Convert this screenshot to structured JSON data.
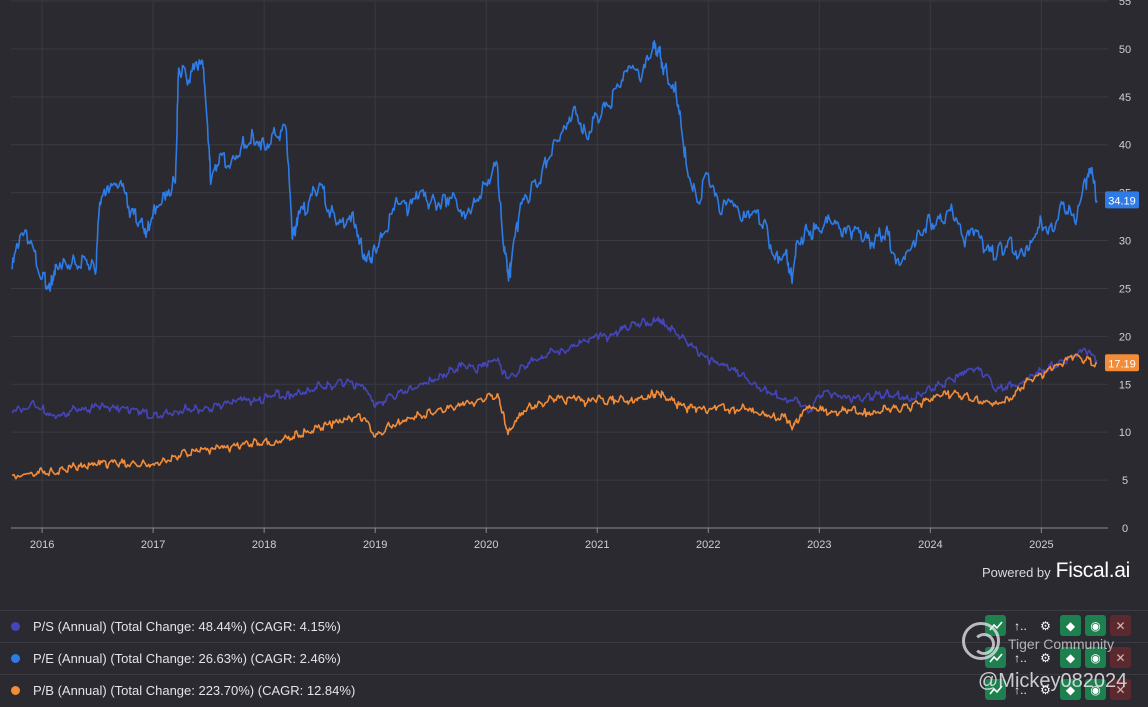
{
  "branding": {
    "powered_by": "Powered by",
    "brand": "Fiscal.ai"
  },
  "colors": {
    "background": "#2a2a30",
    "grid": "#3a3a42",
    "ps": "#4545b8",
    "pe": "#2f7be6",
    "pb": "#f28c38"
  },
  "legend": [
    {
      "label": "P/S (Annual) (Total Change: 48.44%) (CAGR: 4.15%)",
      "color": "#4545b8"
    },
    {
      "label": "P/E (Annual) (Total Change: 26.63%) (CAGR: 2.46%)",
      "color": "#2f7be6"
    },
    {
      "label": "P/B (Annual) (Total Change: 223.70%) (CAGR: 12.84%)",
      "color": "#f28c38"
    }
  ],
  "row_actions": {
    "icons": [
      "trend-icon",
      "sort-icon",
      "gear-icon",
      "tag-icon",
      "eye-icon",
      "close-icon"
    ],
    "sort_label": "↑.."
  },
  "watermark": {
    "title": "Tiger Community",
    "handle": "@Mickey082024"
  },
  "chart_data": {
    "type": "line",
    "ylim": [
      0,
      55
    ],
    "xlim": [
      2015.72,
      2025.6
    ],
    "yticks": [
      "0",
      "5",
      "10",
      "15",
      "20",
      "25",
      "30",
      "35",
      "40",
      "45",
      "50",
      "55"
    ],
    "xticks": [
      "2016",
      "2017",
      "2018",
      "2019",
      "2020",
      "2021",
      "2022",
      "2023",
      "2024",
      "2025"
    ],
    "grid": true,
    "end_labels": [
      {
        "series": "P/E",
        "text": "34.19",
        "value": 34.19
      },
      {
        "series": "P/B",
        "text": "17.19",
        "value": 17.19
      }
    ],
    "series": [
      {
        "name": "P/E (Annual) (Total Change: 26.63%) (CAGR: 2.46%)",
        "key": "pe",
        "x": [
          2015.73,
          2015.8,
          2015.9,
          2016.0,
          2016.08,
          2016.12,
          2016.2,
          2016.3,
          2016.4,
          2016.48,
          2016.52,
          2016.6,
          2016.7,
          2016.8,
          2016.88,
          2016.95,
          2017.0,
          2017.1,
          2017.2,
          2017.23,
          2017.3,
          2017.4,
          2017.45,
          2017.5,
          2017.52,
          2017.6,
          2017.7,
          2017.8,
          2017.9,
          2018.0,
          2018.1,
          2018.2,
          2018.25,
          2018.28,
          2018.3,
          2018.4,
          2018.5,
          2018.6,
          2018.7,
          2018.8,
          2018.88,
          2018.95,
          2019.0,
          2019.1,
          2019.2,
          2019.3,
          2019.4,
          2019.5,
          2019.6,
          2019.7,
          2019.8,
          2019.9,
          2020.0,
          2020.1,
          2020.15,
          2020.2,
          2020.22,
          2020.3,
          2020.4,
          2020.5,
          2020.6,
          2020.7,
          2020.8,
          2020.9,
          2021.0,
          2021.1,
          2021.2,
          2021.3,
          2021.4,
          2021.5,
          2021.55,
          2021.6,
          2021.7,
          2021.75,
          2021.8,
          2021.9,
          2022.0,
          2022.1,
          2022.2,
          2022.3,
          2022.4,
          2022.5,
          2022.6,
          2022.7,
          2022.75,
          2022.8,
          2022.9,
          2023.0,
          2023.1,
          2023.2,
          2023.3,
          2023.4,
          2023.5,
          2023.6,
          2023.7,
          2023.8,
          2023.9,
          2024.0,
          2024.1,
          2024.2,
          2024.3,
          2024.4,
          2024.5,
          2024.6,
          2024.7,
          2024.8,
          2024.9,
          2025.0,
          2025.1,
          2025.2,
          2025.3,
          2025.4,
          2025.45,
          2025.5
        ],
        "values": [
          27,
          30.5,
          30,
          26,
          25.5,
          27.5,
          28,
          27.5,
          28,
          26.5,
          34,
          35,
          36,
          33,
          32,
          31,
          33,
          35,
          36,
          48,
          47,
          48,
          48,
          40,
          36,
          39,
          38,
          40,
          41,
          40,
          41,
          41.5,
          31,
          30.5,
          32,
          34,
          36,
          33,
          32,
          33,
          29,
          28,
          29,
          31,
          34,
          33,
          35,
          34,
          34,
          35,
          33,
          34,
          36,
          38,
          30,
          26,
          27,
          33,
          35,
          37,
          40,
          42,
          44,
          41,
          43,
          44,
          46,
          48,
          47,
          50,
          50,
          48,
          46,
          43,
          38,
          34,
          37,
          33,
          34,
          32,
          33,
          32,
          28,
          29,
          26,
          30,
          31,
          31,
          32,
          30.5,
          31,
          30,
          30,
          31,
          28,
          29,
          31,
          32,
          32,
          33,
          30,
          31,
          29,
          28.5,
          30,
          28.5,
          30,
          32,
          31,
          34,
          32,
          36,
          37,
          34.19
        ]
      },
      {
        "name": "P/S (Annual) (Total Change: 48.44%) (CAGR: 4.15%)",
        "key": "ps",
        "x": [
          2015.73,
          2015.9,
          2016.0,
          2016.1,
          2016.2,
          2016.3,
          2016.4,
          2016.5,
          2016.6,
          2016.7,
          2016.8,
          2016.9,
          2017.0,
          2017.1,
          2017.2,
          2017.3,
          2017.4,
          2017.5,
          2017.6,
          2017.7,
          2017.8,
          2017.9,
          2018.0,
          2018.1,
          2018.2,
          2018.3,
          2018.4,
          2018.5,
          2018.6,
          2018.7,
          2018.8,
          2018.9,
          2019.0,
          2019.1,
          2019.2,
          2019.3,
          2019.4,
          2019.5,
          2019.6,
          2019.7,
          2019.8,
          2019.9,
          2020.0,
          2020.1,
          2020.15,
          2020.2,
          2020.3,
          2020.4,
          2020.5,
          2020.6,
          2020.7,
          2020.8,
          2020.9,
          2021.0,
          2021.1,
          2021.2,
          2021.3,
          2021.4,
          2021.5,
          2021.55,
          2021.6,
          2021.7,
          2021.8,
          2021.9,
          2022.0,
          2022.1,
          2022.2,
          2022.3,
          2022.4,
          2022.5,
          2022.6,
          2022.7,
          2022.8,
          2022.9,
          2023.0,
          2023.1,
          2023.2,
          2023.3,
          2023.4,
          2023.5,
          2023.6,
          2023.7,
          2023.8,
          2023.9,
          2024.0,
          2024.1,
          2024.2,
          2024.3,
          2024.4,
          2024.5,
          2024.6,
          2024.7,
          2024.8,
          2024.9,
          2025.0,
          2025.1,
          2025.2,
          2025.3,
          2025.4,
          2025.5
        ],
        "values": [
          12,
          13,
          12.5,
          11.8,
          12,
          12.5,
          12.3,
          12.7,
          12.5,
          12.3,
          12.4,
          12.2,
          11.6,
          12,
          12.2,
          12.5,
          12.4,
          12.5,
          12.8,
          13,
          13.3,
          13.2,
          13.5,
          14,
          13.8,
          14.2,
          14.5,
          15,
          14.8,
          15.2,
          15,
          14.5,
          12.6,
          13.5,
          14,
          14.5,
          15,
          15.5,
          16,
          16.5,
          17,
          16.5,
          17,
          17.5,
          16.2,
          15.6,
          16.5,
          17.5,
          18,
          18.5,
          18.5,
          19,
          19.5,
          20,
          19.8,
          20.5,
          21,
          21.5,
          21.5,
          22,
          21.5,
          20.5,
          19.5,
          18.5,
          17.5,
          17,
          16.5,
          16,
          15,
          14.5,
          14,
          13.5,
          13.5,
          12,
          13.8,
          14,
          13.5,
          13.5,
          13.5,
          13.8,
          14,
          14,
          13.5,
          14,
          14.5,
          15,
          15.5,
          16,
          16.5,
          16,
          14.5,
          15,
          15,
          16,
          16.5,
          17,
          17.5,
          18,
          18.5,
          17.5
        ]
      },
      {
        "name": "P/B (Annual) (Total Change: 223.70%) (CAGR: 12.84%)",
        "key": "pb",
        "x": [
          2015.73,
          2015.9,
          2016.0,
          2016.1,
          2016.2,
          2016.3,
          2016.4,
          2016.5,
          2016.6,
          2016.7,
          2016.8,
          2016.9,
          2017.0,
          2017.1,
          2017.2,
          2017.3,
          2017.4,
          2017.5,
          2017.6,
          2017.7,
          2017.8,
          2017.9,
          2018.0,
          2018.1,
          2018.2,
          2018.3,
          2018.4,
          2018.5,
          2018.6,
          2018.7,
          2018.8,
          2018.9,
          2019.0,
          2019.1,
          2019.2,
          2019.3,
          2019.4,
          2019.5,
          2019.6,
          2019.7,
          2019.8,
          2019.9,
          2020.0,
          2020.1,
          2020.15,
          2020.2,
          2020.3,
          2020.4,
          2020.5,
          2020.6,
          2020.7,
          2020.8,
          2020.9,
          2021.0,
          2021.1,
          2021.2,
          2021.3,
          2021.4,
          2021.5,
          2021.55,
          2021.6,
          2021.7,
          2021.8,
          2021.9,
          2022.0,
          2022.1,
          2022.2,
          2022.3,
          2022.4,
          2022.5,
          2022.6,
          2022.7,
          2022.75,
          2022.8,
          2022.9,
          2023.0,
          2023.1,
          2023.2,
          2023.3,
          2023.4,
          2023.5,
          2023.6,
          2023.7,
          2023.8,
          2023.9,
          2024.0,
          2024.1,
          2024.2,
          2024.3,
          2024.4,
          2024.5,
          2024.6,
          2024.7,
          2024.8,
          2024.9,
          2025.0,
          2025.1,
          2025.2,
          2025.3,
          2025.4,
          2025.5
        ],
        "values": [
          5.5,
          5.8,
          6,
          5.8,
          6.1,
          6.4,
          6.3,
          6.6,
          6.7,
          6.8,
          6.7,
          6.8,
          6.7,
          7.2,
          7.5,
          7.8,
          8,
          8.1,
          8.3,
          8.4,
          8.7,
          8.9,
          9.1,
          9,
          9.5,
          9.8,
          10,
          10.5,
          10.8,
          11,
          11.5,
          11.5,
          9.5,
          10.5,
          11,
          11.5,
          11.8,
          12,
          12.3,
          12.5,
          12.8,
          13,
          13.5,
          14,
          12,
          10,
          12,
          12.8,
          13,
          13.5,
          13.3,
          13.5,
          13,
          13.5,
          13.3,
          13.5,
          13.3,
          13.8,
          14,
          14.2,
          13.8,
          13,
          12.5,
          12.5,
          12.2,
          12.8,
          12.3,
          12.5,
          12.5,
          12,
          11.5,
          11.5,
          10.5,
          11,
          12.5,
          12.3,
          12,
          12.2,
          12.5,
          12,
          12.2,
          12.5,
          12.5,
          12.5,
          13,
          13.2,
          13.8,
          14,
          13.8,
          13.5,
          13.3,
          13,
          13.5,
          14.5,
          15.5,
          16,
          16.5,
          17.2,
          18,
          17.5,
          17.19
        ]
      }
    ]
  }
}
